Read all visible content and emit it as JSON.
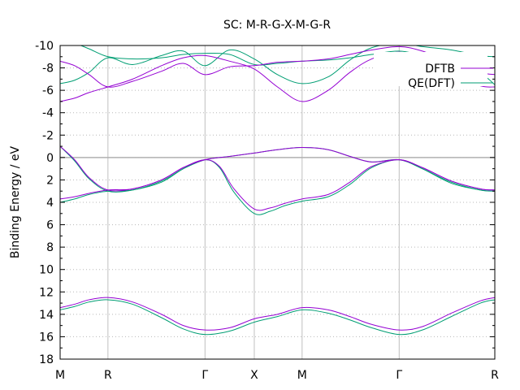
{
  "chart_data": {
    "type": "line",
    "title": "SC: M-R-G-X-M-G-R",
    "xlabel": "",
    "ylabel": "Binding Energy / eV",
    "ylim": [
      18,
      -10
    ],
    "xlim": [
      0,
      3.0
    ],
    "yticks": [
      -10,
      -8,
      -6,
      -4,
      -2,
      0,
      2,
      4,
      6,
      8,
      10,
      12,
      14,
      16,
      18
    ],
    "xticks": [
      {
        "label": "M",
        "x": 0
      },
      {
        "label": "R",
        "x": 0.33
      },
      {
        "label": "Γ",
        "x": 1.0
      },
      {
        "label": "X",
        "x": 1.34
      },
      {
        "label": "M",
        "x": 1.67
      },
      {
        "label": "Γ",
        "x": 2.34
      },
      {
        "label": "R",
        "x": 3.0
      }
    ],
    "grid": true,
    "reference_line": 0,
    "legend": {
      "position": "top-right"
    },
    "series": [
      {
        "name": "DFTB",
        "color": "#9400d3",
        "bands": [
          {
            "x": [
              0,
              0.1,
              0.2,
              0.33,
              0.5,
              0.7,
              0.85,
              1.0,
              1.17,
              1.34,
              1.5,
              1.67,
              1.85,
              2.0,
              2.15,
              2.34,
              2.5,
              2.7,
              2.9,
              3.0
            ],
            "y": [
              13.4,
              13.1,
              12.7,
              12.5,
              12.9,
              14.0,
              15.0,
              15.4,
              15.2,
              14.4,
              14.0,
              13.4,
              13.6,
              14.2,
              14.9,
              15.4,
              15.1,
              13.9,
              12.8,
              12.5
            ]
          },
          {
            "x": [
              0,
              0.1,
              0.2,
              0.33,
              0.5,
              0.7,
              0.85,
              1.0,
              1.1,
              1.2,
              1.34,
              1.45,
              1.55,
              1.67,
              1.85,
              2.0,
              2.15,
              2.34,
              2.5,
              2.7,
              2.9,
              3.0
            ],
            "y": [
              3.7,
              3.5,
              3.2,
              2.9,
              2.8,
              2.0,
              0.9,
              0.2,
              0.8,
              2.8,
              4.6,
              4.5,
              4.1,
              3.7,
              3.3,
              2.2,
              0.8,
              0.2,
              0.9,
              2.1,
              2.8,
              2.9
            ]
          },
          {
            "x": [
              0,
              0.1,
              0.2,
              0.33,
              0.5,
              0.7,
              0.85,
              1.0,
              1.17,
              1.34,
              1.5,
              1.67,
              1.85,
              2.0,
              2.15,
              2.34,
              2.5,
              2.7,
              2.9,
              3.0
            ],
            "y": [
              -1.0,
              0.2,
              1.8,
              2.9,
              2.8,
              2.0,
              0.9,
              0.2,
              -0.1,
              -0.4,
              -0.7,
              -0.9,
              -0.7,
              -0.1,
              0.4,
              0.2,
              0.9,
              2.1,
              2.8,
              2.9
            ]
          },
          {
            "x": [
              0,
              0.1,
              0.2,
              0.33,
              0.5,
              0.7,
              0.85,
              1.0,
              1.17,
              1.34,
              1.5,
              1.67,
              1.85,
              2.0,
              2.15,
              2.34,
              2.5,
              2.7,
              2.9,
              3.0
            ],
            "y": [
              -5.0,
              -5.3,
              -5.8,
              -6.3,
              -7.0,
              -8.2,
              -8.9,
              -9.1,
              -8.6,
              -7.9,
              -6.3,
              -5.0,
              -6.0,
              -7.6,
              -8.8,
              -9.4,
              -8.7,
              -7.4,
              -6.4,
              -6.3
            ]
          },
          {
            "x": [
              0,
              0.1,
              0.2,
              0.33,
              0.5,
              0.7,
              0.85,
              1.0,
              1.17,
              1.34,
              1.5,
              1.67,
              1.85,
              2.0,
              2.15,
              2.34,
              2.5,
              2.7,
              2.9,
              3.0
            ],
            "y": [
              -8.6,
              -8.2,
              -7.4,
              -6.3,
              -6.8,
              -7.7,
              -8.4,
              -7.4,
              -8.1,
              -8.2,
              -8.5,
              -8.6,
              -8.8,
              -9.2,
              -9.6,
              -9.9,
              -9.5,
              -8.5,
              -7.6,
              -7.4
            ]
          }
        ]
      },
      {
        "name": "QE(DFT)",
        "color": "#009e73",
        "bands": [
          {
            "x": [
              0,
              0.1,
              0.2,
              0.33,
              0.5,
              0.7,
              0.85,
              1.0,
              1.17,
              1.34,
              1.5,
              1.67,
              1.85,
              2.0,
              2.15,
              2.34,
              2.5,
              2.7,
              2.9,
              3.0
            ],
            "y": [
              13.6,
              13.3,
              12.9,
              12.7,
              13.1,
              14.3,
              15.3,
              15.8,
              15.5,
              14.7,
              14.2,
              13.6,
              13.9,
              14.5,
              15.2,
              15.8,
              15.4,
              14.2,
              13.0,
              12.7
            ]
          },
          {
            "x": [
              0,
              0.1,
              0.2,
              0.33,
              0.5,
              0.7,
              0.85,
              1.0,
              1.1,
              1.2,
              1.34,
              1.45,
              1.55,
              1.67,
              1.85,
              2.0,
              2.15,
              2.34,
              2.5,
              2.7,
              2.9,
              3.0
            ],
            "y": [
              4.0,
              3.7,
              3.3,
              3.0,
              2.9,
              2.2,
              1.0,
              0.2,
              0.9,
              3.1,
              5.0,
              4.8,
              4.3,
              3.9,
              3.5,
              2.4,
              0.9,
              0.2,
              1.0,
              2.3,
              2.9,
              3.0
            ]
          },
          {
            "x": [
              0,
              0.1,
              0.2,
              0.33,
              0.5,
              0.7,
              0.85,
              1.0,
              1.17,
              1.34,
              1.5,
              1.67,
              1.85,
              2.0,
              2.15,
              2.34,
              2.5,
              2.7,
              2.9,
              3.0
            ],
            "y": [
              -1.0,
              0.3,
              1.9,
              3.0,
              2.9,
              2.1,
              1.0,
              0.2,
              -0.1,
              -0.4,
              -0.7,
              -0.9,
              -0.7,
              -0.1,
              0.4,
              0.2,
              1.0,
              2.2,
              2.9,
              3.0
            ]
          },
          {
            "x": [
              0,
              0.1,
              0.2,
              0.33,
              0.5,
              0.7,
              0.85,
              1.0,
              1.17,
              1.34,
              1.5,
              1.67,
              1.85,
              2.0,
              2.15,
              2.34,
              2.5,
              2.7,
              2.9,
              3.0
            ],
            "y": [
              -6.6,
              -6.9,
              -7.6,
              -8.9,
              -8.3,
              -9.1,
              -9.5,
              -8.2,
              -9.6,
              -8.8,
              -7.4,
              -6.6,
              -7.2,
              -8.7,
              -9.8,
              -10.2,
              -9.9,
              -9.6,
              -9.1,
              -9.0
            ]
          },
          {
            "x": [
              0,
              0.1,
              0.2,
              0.33,
              0.5,
              0.7,
              0.85,
              1.0,
              1.17,
              1.34,
              1.5,
              1.67,
              1.85,
              2.0,
              2.15,
              2.34,
              2.5,
              2.7,
              2.9,
              3.0
            ],
            "y": [
              -10.5,
              -10.2,
              -9.7,
              -9.0,
              -8.8,
              -8.9,
              -9.2,
              -9.3,
              -9.2,
              -8.3,
              -8.4,
              -8.6,
              -8.7,
              -8.9,
              -9.2,
              -9.5,
              -9.1,
              -8.4,
              -7.5,
              -6.5
            ]
          }
        ]
      }
    ]
  }
}
